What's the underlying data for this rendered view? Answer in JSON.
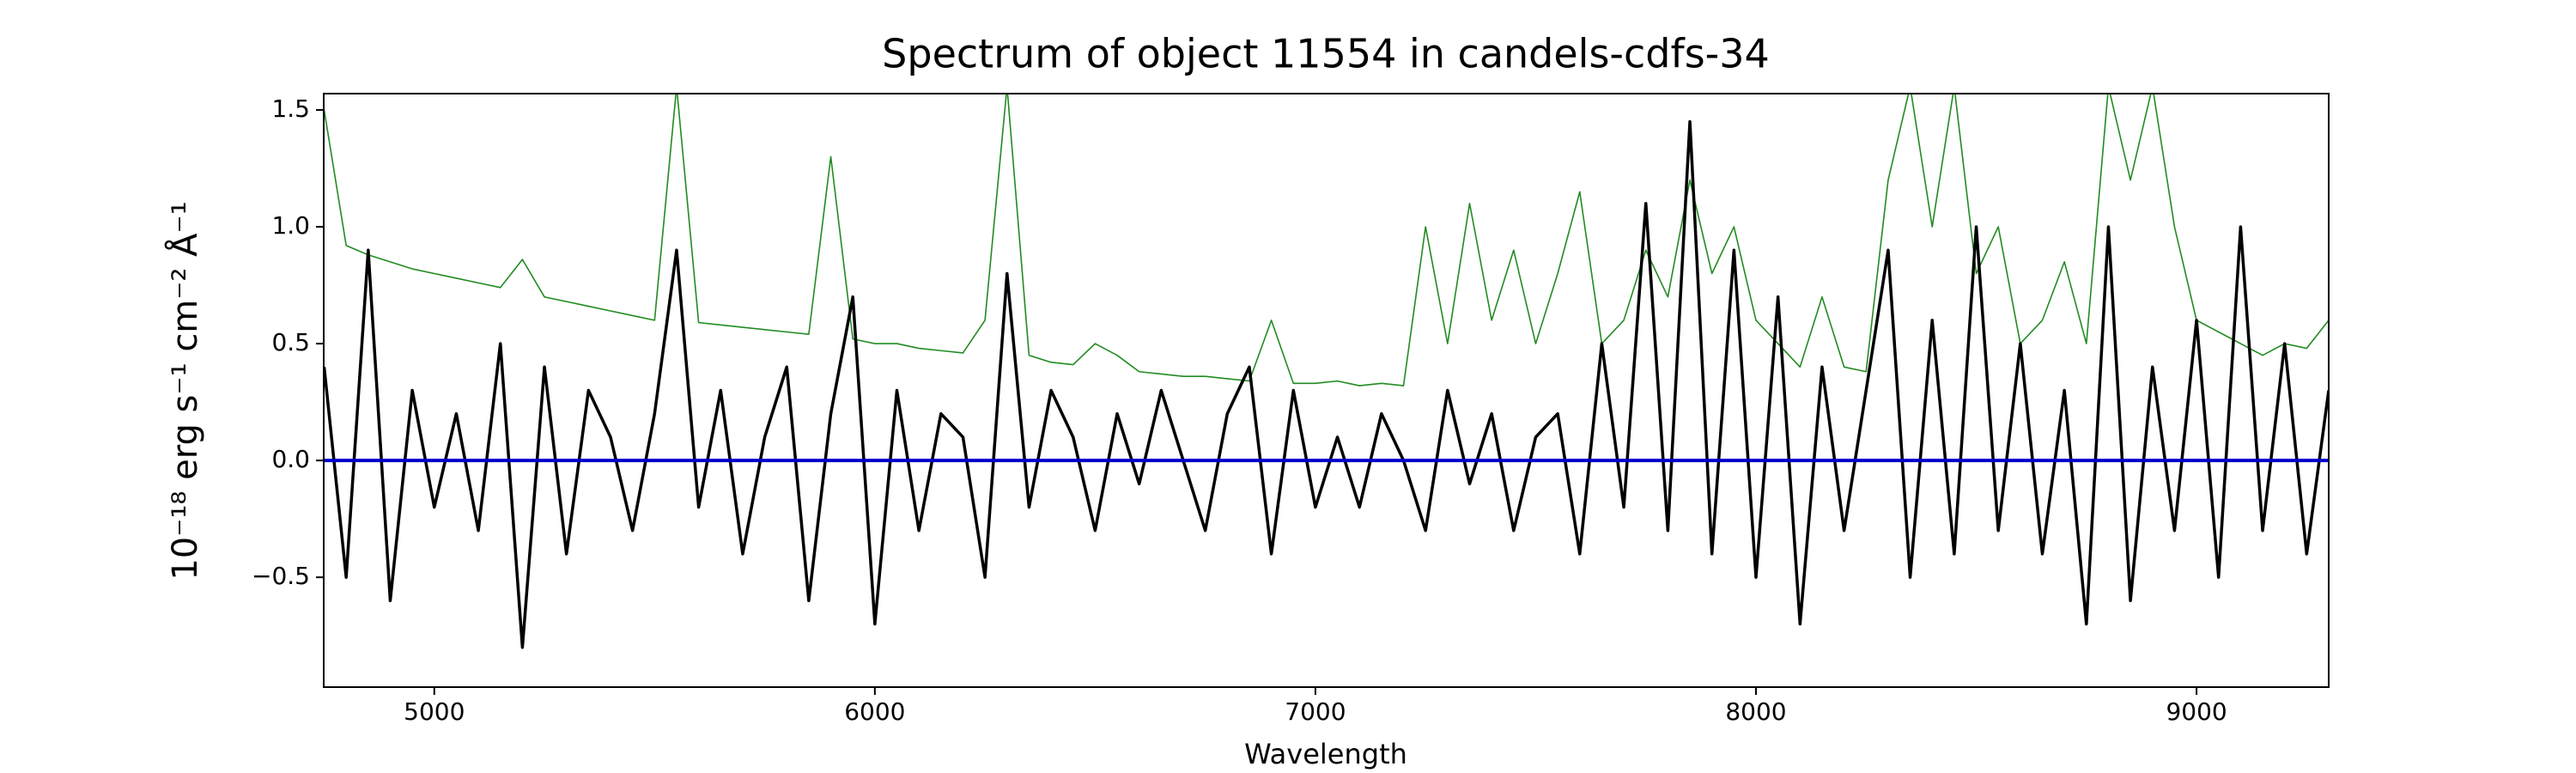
{
  "chart_data": {
    "type": "line",
    "title": "Spectrum of object 11554 in candels-cdfs-34",
    "x_label": "Wavelength",
    "y_label": "10⁻¹⁸ erg s⁻¹ cm⁻² Å⁻¹",
    "xlim": [
      4749,
      9300
    ],
    "ylim": [
      -0.97,
      1.57
    ],
    "xticks": [
      5000,
      6000,
      7000,
      8000,
      9000
    ],
    "yticks": [
      {
        "value": -0.5,
        "label": "−0.5"
      },
      {
        "value": 0,
        "label": "0.0"
      },
      0.5,
      {
        "value": 1,
        "label": "1.0"
      },
      1.5
    ],
    "x": [
      4750,
      4800,
      4850,
      4900,
      4950,
      5000,
      5050,
      5100,
      5150,
      5200,
      5250,
      5300,
      5350,
      5400,
      5450,
      5500,
      5550,
      5600,
      5650,
      5700,
      5750,
      5800,
      5850,
      5900,
      5950,
      6000,
      6050,
      6100,
      6150,
      6200,
      6250,
      6300,
      6350,
      6400,
      6450,
      6500,
      6550,
      6600,
      6650,
      6700,
      6750,
      6800,
      6850,
      6900,
      6950,
      7000,
      7050,
      7100,
      7150,
      7200,
      7250,
      7300,
      7350,
      7400,
      7450,
      7500,
      7550,
      7600,
      7650,
      7700,
      7750,
      7800,
      7850,
      7900,
      7950,
      8000,
      8050,
      8100,
      8150,
      8200,
      8250,
      8300,
      8350,
      8400,
      8450,
      8500,
      8550,
      8600,
      8650,
      8700,
      8750,
      8800,
      8850,
      8900,
      8950,
      9000,
      9050,
      9100,
      9150,
      9200,
      9250,
      9300
    ],
    "series": [
      {
        "color": "#228b22",
        "width": 1.6,
        "values": [
          1.5,
          0.92,
          0.88,
          0.85,
          0.82,
          0.8,
          0.78,
          0.76,
          0.74,
          0.86,
          0.7,
          0.68,
          0.66,
          0.64,
          0.62,
          0.6,
          1.6,
          0.59,
          0.58,
          0.57,
          0.56,
          0.55,
          0.54,
          1.3,
          0.52,
          0.5,
          0.5,
          0.48,
          0.47,
          0.46,
          0.6,
          1.6,
          0.45,
          0.42,
          0.41,
          0.5,
          0.45,
          0.38,
          0.37,
          0.36,
          0.36,
          0.35,
          0.34,
          0.6,
          0.33,
          0.33,
          0.34,
          0.32,
          0.33,
          0.32,
          1.0,
          0.5,
          1.1,
          0.6,
          0.9,
          0.5,
          0.8,
          1.15,
          0.5,
          0.6,
          0.9,
          0.7,
          1.2,
          0.8,
          1.0,
          0.6,
          0.5,
          0.4,
          0.7,
          0.4,
          0.38,
          1.2,
          1.6,
          1.0,
          1.6,
          0.8,
          1.0,
          0.5,
          0.6,
          0.85,
          0.5,
          1.6,
          1.2,
          1.6,
          1.0,
          0.6,
          0.55,
          0.5,
          0.45,
          0.5,
          0.48,
          0.6
        ]
      },
      {
        "color": "#000000",
        "width": 3.5,
        "values": [
          0.4,
          -0.5,
          0.9,
          -0.6,
          0.3,
          -0.2,
          0.2,
          -0.3,
          0.5,
          -0.8,
          0.4,
          -0.4,
          0.3,
          0.1,
          -0.3,
          0.2,
          0.9,
          -0.2,
          0.3,
          -0.4,
          0.1,
          0.4,
          -0.6,
          0.2,
          0.7,
          -0.7,
          0.3,
          -0.3,
          0.2,
          0.1,
          -0.5,
          0.8,
          -0.2,
          0.3,
          0.1,
          -0.3,
          0.2,
          -0.1,
          0.3,
          0.0,
          -0.3,
          0.2,
          0.4,
          -0.4,
          0.3,
          -0.2,
          0.1,
          -0.2,
          0.2,
          0.0,
          -0.3,
          0.3,
          -0.1,
          0.2,
          -0.3,
          0.1,
          0.2,
          -0.4,
          0.5,
          -0.2,
          1.1,
          -0.3,
          1.45,
          -0.4,
          0.9,
          -0.5,
          0.7,
          -0.7,
          0.4,
          -0.3,
          0.3,
          0.9,
          -0.5,
          0.6,
          -0.4,
          1.0,
          -0.3,
          0.5,
          -0.4,
          0.3,
          -0.7,
          1.0,
          -0.6,
          0.4,
          -0.3,
          0.6,
          -0.5,
          1.0,
          -0.3,
          0.5,
          -0.4,
          0.3
        ]
      },
      {
        "color": "#0000cc",
        "width": 4,
        "x": [
          4749,
          9300
        ],
        "values": [
          0,
          0
        ]
      }
    ]
  }
}
